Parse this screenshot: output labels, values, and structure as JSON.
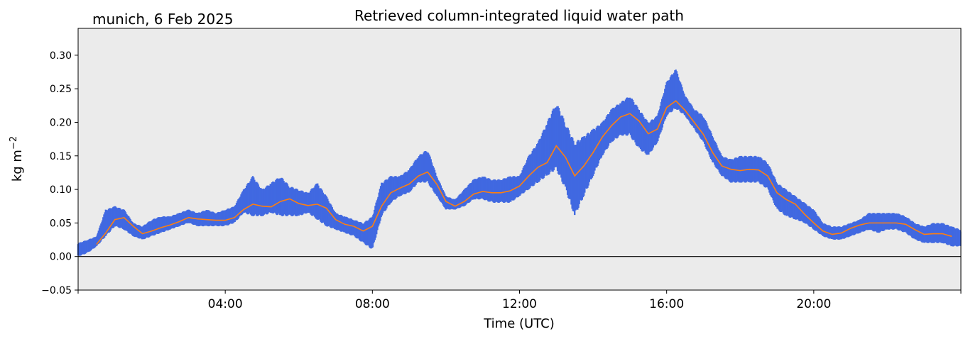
{
  "chart_data": {
    "type": "line",
    "title": "Retrieved column-integrated liquid water path",
    "subtitle": "munich, 6 Feb 2025",
    "xlabel": "Time (UTC)",
    "ylabel": "kg m",
    "ylabel_superscript": "−2",
    "xlim_hours": [
      0,
      24
    ],
    "ylim": [
      -0.05,
      0.34
    ],
    "x_ticks": [
      {
        "hour": 4,
        "label": "04:00"
      },
      {
        "hour": 8,
        "label": "08:00"
      },
      {
        "hour": 12,
        "label": "12:00"
      },
      {
        "hour": 16,
        "label": "16:00"
      },
      {
        "hour": 20,
        "label": "20:00"
      }
    ],
    "y_ticks": [
      {
        "value": -0.05,
        "label": "−0.05"
      },
      {
        "value": 0.0,
        "label": "0.00"
      },
      {
        "value": 0.05,
        "label": "0.05"
      },
      {
        "value": 0.1,
        "label": "0.10"
      },
      {
        "value": 0.15,
        "label": "0.15"
      },
      {
        "value": 0.2,
        "label": "0.20"
      },
      {
        "value": 0.25,
        "label": "0.25"
      },
      {
        "value": 0.3,
        "label": "0.30"
      }
    ],
    "grid": false,
    "zero_line": true,
    "background_color": "#ebebeb",
    "series": [
      {
        "kind": "scatter",
        "color": "#4169e1",
        "points": [
          [
            0.0,
            0.0,
            0.02
          ],
          [
            0.25,
            0.005,
            0.025
          ],
          [
            0.5,
            0.015,
            0.03
          ],
          [
            0.75,
            0.03,
            0.07
          ],
          [
            1.0,
            0.045,
            0.075
          ],
          [
            1.25,
            0.04,
            0.07
          ],
          [
            1.5,
            0.03,
            0.05
          ],
          [
            1.75,
            0.025,
            0.045
          ],
          [
            2.0,
            0.03,
            0.055
          ],
          [
            2.25,
            0.035,
            0.06
          ],
          [
            2.5,
            0.04,
            0.06
          ],
          [
            2.75,
            0.045,
            0.065
          ],
          [
            3.0,
            0.05,
            0.07
          ],
          [
            3.25,
            0.045,
            0.065
          ],
          [
            3.5,
            0.045,
            0.07
          ],
          [
            3.75,
            0.045,
            0.065
          ],
          [
            4.0,
            0.045,
            0.07
          ],
          [
            4.25,
            0.05,
            0.075
          ],
          [
            4.5,
            0.065,
            0.1
          ],
          [
            4.75,
            0.06,
            0.12
          ],
          [
            5.0,
            0.06,
            0.1
          ],
          [
            5.25,
            0.065,
            0.11
          ],
          [
            5.5,
            0.06,
            0.12
          ],
          [
            5.75,
            0.06,
            0.105
          ],
          [
            6.0,
            0.06,
            0.1
          ],
          [
            6.25,
            0.065,
            0.095
          ],
          [
            6.5,
            0.055,
            0.11
          ],
          [
            6.75,
            0.045,
            0.09
          ],
          [
            7.0,
            0.04,
            0.065
          ],
          [
            7.25,
            0.035,
            0.06
          ],
          [
            7.5,
            0.03,
            0.055
          ],
          [
            7.75,
            0.02,
            0.05
          ],
          [
            8.0,
            0.01,
            0.06
          ],
          [
            8.25,
            0.06,
            0.11
          ],
          [
            8.5,
            0.08,
            0.12
          ],
          [
            8.75,
            0.09,
            0.12
          ],
          [
            9.0,
            0.095,
            0.13
          ],
          [
            9.25,
            0.11,
            0.15
          ],
          [
            9.5,
            0.11,
            0.16
          ],
          [
            9.75,
            0.09,
            0.12
          ],
          [
            10.0,
            0.07,
            0.09
          ],
          [
            10.25,
            0.07,
            0.085
          ],
          [
            10.5,
            0.075,
            0.1
          ],
          [
            10.75,
            0.085,
            0.115
          ],
          [
            11.0,
            0.085,
            0.12
          ],
          [
            11.25,
            0.08,
            0.115
          ],
          [
            11.5,
            0.08,
            0.115
          ],
          [
            11.75,
            0.08,
            0.12
          ],
          [
            12.0,
            0.09,
            0.12
          ],
          [
            12.25,
            0.1,
            0.15
          ],
          [
            12.5,
            0.11,
            0.17
          ],
          [
            12.75,
            0.12,
            0.2
          ],
          [
            13.0,
            0.13,
            0.23
          ],
          [
            13.25,
            0.1,
            0.2
          ],
          [
            13.5,
            0.06,
            0.17
          ],
          [
            13.75,
            0.09,
            0.18
          ],
          [
            14.0,
            0.12,
            0.19
          ],
          [
            14.25,
            0.15,
            0.2
          ],
          [
            14.5,
            0.17,
            0.22
          ],
          [
            14.75,
            0.18,
            0.23
          ],
          [
            15.0,
            0.18,
            0.24
          ],
          [
            15.25,
            0.16,
            0.22
          ],
          [
            15.5,
            0.15,
            0.2
          ],
          [
            15.75,
            0.17,
            0.21
          ],
          [
            16.0,
            0.21,
            0.26
          ],
          [
            16.25,
            0.22,
            0.28
          ],
          [
            16.5,
            0.21,
            0.24
          ],
          [
            16.75,
            0.19,
            0.22
          ],
          [
            17.0,
            0.17,
            0.21
          ],
          [
            17.25,
            0.14,
            0.18
          ],
          [
            17.5,
            0.12,
            0.15
          ],
          [
            17.75,
            0.11,
            0.145
          ],
          [
            18.0,
            0.11,
            0.15
          ],
          [
            18.25,
            0.11,
            0.15
          ],
          [
            18.5,
            0.11,
            0.15
          ],
          [
            18.75,
            0.1,
            0.14
          ],
          [
            19.0,
            0.07,
            0.11
          ],
          [
            19.25,
            0.06,
            0.1
          ],
          [
            19.5,
            0.055,
            0.09
          ],
          [
            19.75,
            0.05,
            0.08
          ],
          [
            20.0,
            0.04,
            0.07
          ],
          [
            20.25,
            0.03,
            0.05
          ],
          [
            20.5,
            0.025,
            0.045
          ],
          [
            20.75,
            0.025,
            0.045
          ],
          [
            21.0,
            0.03,
            0.05
          ],
          [
            21.25,
            0.035,
            0.055
          ],
          [
            21.5,
            0.04,
            0.065
          ],
          [
            21.75,
            0.035,
            0.065
          ],
          [
            22.0,
            0.04,
            0.065
          ],
          [
            22.25,
            0.04,
            0.065
          ],
          [
            22.5,
            0.035,
            0.06
          ],
          [
            22.75,
            0.025,
            0.05
          ],
          [
            23.0,
            0.02,
            0.045
          ],
          [
            23.25,
            0.02,
            0.05
          ],
          [
            23.5,
            0.02,
            0.05
          ],
          [
            23.75,
            0.015,
            0.045
          ],
          [
            24.0,
            0.015,
            0.04
          ]
        ]
      },
      {
        "kind": "line",
        "color": "#ff7f0e",
        "points": [
          [
            0.5,
            0.018
          ],
          [
            0.75,
            0.035
          ],
          [
            1.0,
            0.055
          ],
          [
            1.25,
            0.058
          ],
          [
            1.5,
            0.045
          ],
          [
            1.75,
            0.034
          ],
          [
            2.0,
            0.038
          ],
          [
            2.25,
            0.043
          ],
          [
            2.5,
            0.047
          ],
          [
            2.75,
            0.052
          ],
          [
            3.0,
            0.058
          ],
          [
            3.25,
            0.056
          ],
          [
            3.5,
            0.055
          ],
          [
            3.75,
            0.054
          ],
          [
            4.0,
            0.054
          ],
          [
            4.25,
            0.058
          ],
          [
            4.5,
            0.07
          ],
          [
            4.75,
            0.078
          ],
          [
            5.0,
            0.075
          ],
          [
            5.25,
            0.074
          ],
          [
            5.5,
            0.082
          ],
          [
            5.75,
            0.086
          ],
          [
            6.0,
            0.079
          ],
          [
            6.25,
            0.076
          ],
          [
            6.5,
            0.078
          ],
          [
            6.75,
            0.072
          ],
          [
            7.0,
            0.055
          ],
          [
            7.25,
            0.048
          ],
          [
            7.5,
            0.045
          ],
          [
            7.75,
            0.038
          ],
          [
            8.0,
            0.045
          ],
          [
            8.25,
            0.075
          ],
          [
            8.5,
            0.095
          ],
          [
            8.75,
            0.102
          ],
          [
            9.0,
            0.108
          ],
          [
            9.25,
            0.12
          ],
          [
            9.5,
            0.126
          ],
          [
            9.75,
            0.108
          ],
          [
            10.0,
            0.082
          ],
          [
            10.25,
            0.075
          ],
          [
            10.5,
            0.082
          ],
          [
            10.75,
            0.093
          ],
          [
            11.0,
            0.097
          ],
          [
            11.25,
            0.095
          ],
          [
            11.5,
            0.095
          ],
          [
            11.75,
            0.098
          ],
          [
            12.0,
            0.105
          ],
          [
            12.25,
            0.12
          ],
          [
            12.5,
            0.133
          ],
          [
            12.75,
            0.14
          ],
          [
            13.0,
            0.165
          ],
          [
            13.25,
            0.148
          ],
          [
            13.5,
            0.12
          ],
          [
            13.75,
            0.135
          ],
          [
            14.0,
            0.155
          ],
          [
            14.25,
            0.178
          ],
          [
            14.5,
            0.195
          ],
          [
            14.75,
            0.208
          ],
          [
            15.0,
            0.213
          ],
          [
            15.25,
            0.202
          ],
          [
            15.5,
            0.183
          ],
          [
            15.75,
            0.19
          ],
          [
            16.0,
            0.222
          ],
          [
            16.25,
            0.232
          ],
          [
            16.5,
            0.218
          ],
          [
            16.75,
            0.2
          ],
          [
            17.0,
            0.182
          ],
          [
            17.25,
            0.155
          ],
          [
            17.5,
            0.135
          ],
          [
            17.75,
            0.13
          ],
          [
            18.0,
            0.128
          ],
          [
            18.25,
            0.13
          ],
          [
            18.5,
            0.129
          ],
          [
            18.75,
            0.12
          ],
          [
            19.0,
            0.095
          ],
          [
            19.25,
            0.085
          ],
          [
            19.5,
            0.078
          ],
          [
            19.75,
            0.063
          ],
          [
            20.0,
            0.05
          ],
          [
            20.25,
            0.038
          ],
          [
            20.5,
            0.033
          ],
          [
            20.75,
            0.035
          ],
          [
            21.0,
            0.042
          ],
          [
            21.25,
            0.047
          ],
          [
            21.5,
            0.05
          ],
          [
            21.75,
            0.05
          ],
          [
            22.0,
            0.05
          ],
          [
            22.25,
            0.05
          ],
          [
            22.5,
            0.048
          ],
          [
            22.75,
            0.04
          ],
          [
            23.0,
            0.033
          ],
          [
            23.25,
            0.034
          ],
          [
            23.5,
            0.034
          ],
          [
            23.75,
            0.03
          ]
        ]
      }
    ]
  }
}
